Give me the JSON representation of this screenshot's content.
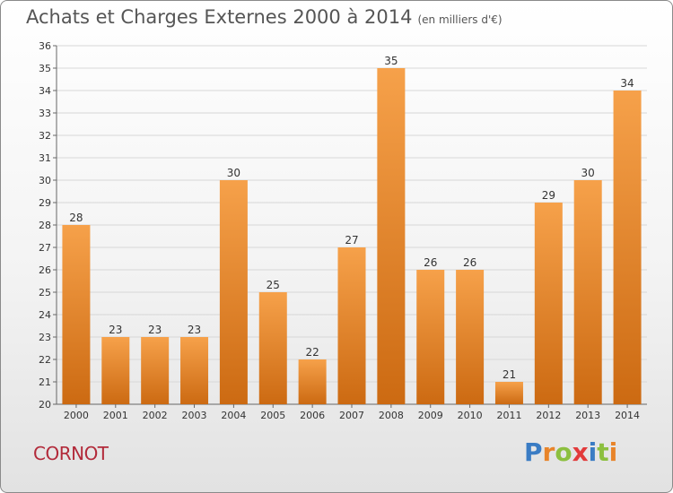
{
  "title": "Achats et Charges Externes 2000 à 2014",
  "unit": "(en milliers d'€)",
  "place": "CORNOT",
  "logo": {
    "text": "Proxiti",
    "letters": [
      {
        "char": "P",
        "color": "#3a7cc4"
      },
      {
        "char": "r",
        "color": "#e8842a"
      },
      {
        "char": "o",
        "color": "#8cbf3f"
      },
      {
        "char": "x",
        "color": "#e23b3b"
      },
      {
        "char": "i",
        "color": "#3a7cc4"
      },
      {
        "char": "t",
        "color": "#8cbf3f"
      },
      {
        "char": "i",
        "color": "#e8842a"
      }
    ]
  },
  "colors": {
    "bar_top": "#f6a14a",
    "bar_bottom": "#cc6a12",
    "grid": "#d7d7d7",
    "axis": "#666666"
  },
  "chart_data": {
    "type": "bar",
    "categories": [
      "2000",
      "2001",
      "2002",
      "2003",
      "2004",
      "2005",
      "2006",
      "2007",
      "2008",
      "2009",
      "2010",
      "2011",
      "2012",
      "2013",
      "2014"
    ],
    "values": [
      28,
      23,
      23,
      23,
      30,
      25,
      22,
      27,
      35,
      26,
      26,
      21,
      29,
      30,
      34
    ],
    "ylim": [
      20,
      36
    ],
    "yticks": [
      20,
      21,
      22,
      23,
      24,
      25,
      26,
      27,
      28,
      29,
      30,
      31,
      32,
      33,
      34,
      35,
      36
    ],
    "grid": true,
    "data_labels": true
  }
}
